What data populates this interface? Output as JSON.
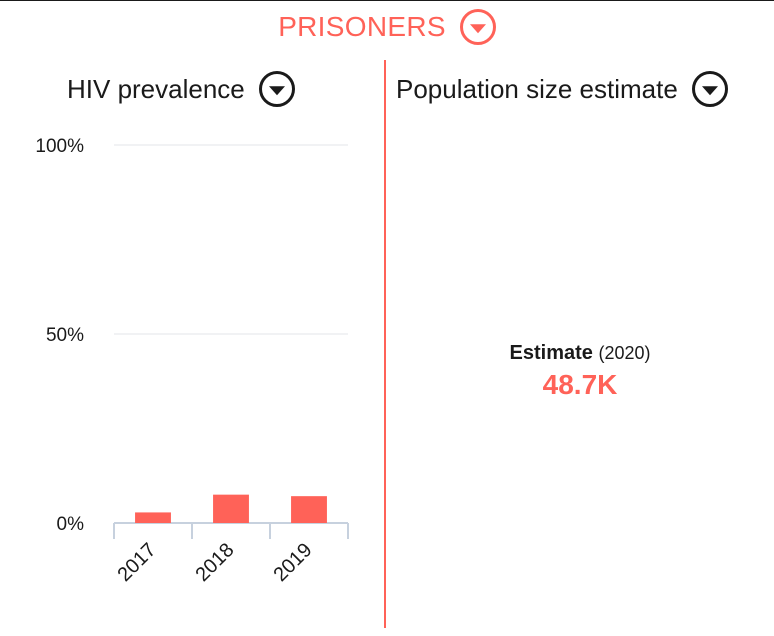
{
  "header": {
    "title": "PRISONERS",
    "dropdown_icon": "chevron-down-circle-icon"
  },
  "colors": {
    "accent": "#ff6258",
    "axis": "#c7d1de",
    "grid": "#e3e6ea",
    "text": "#1a1a1a"
  },
  "left_panel": {
    "title": "HIV prevalence",
    "dropdown_icon": "chevron-down-circle-icon"
  },
  "right_panel": {
    "title": "Population size estimate",
    "dropdown_icon": "chevron-down-circle-icon",
    "estimate": {
      "label": "Estimate",
      "year": "(2020)",
      "value": "48.7K"
    }
  },
  "chart_data": {
    "type": "bar",
    "title": "HIV prevalence",
    "categories": [
      "2017",
      "2018",
      "2019"
    ],
    "values": [
      2.8,
      7.5,
      7.1
    ],
    "ylim": [
      0,
      100
    ],
    "yticks": [
      0,
      50,
      100
    ],
    "ytick_labels": [
      "0%",
      "50%",
      "100%"
    ],
    "xlabel": "",
    "ylabel": "",
    "grid": true
  }
}
